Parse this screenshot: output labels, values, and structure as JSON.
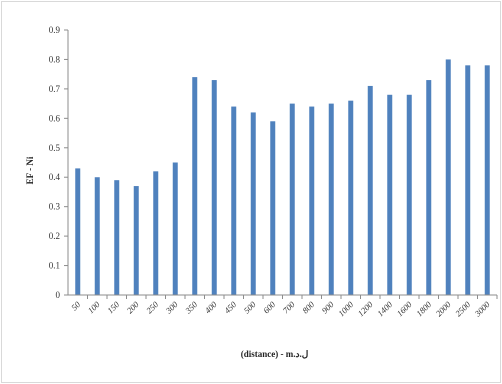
{
  "chart_data": {
    "type": "bar",
    "categories": [
      "50",
      "100",
      "150",
      "200",
      "250",
      "300",
      "350",
      "400",
      "450",
      "500",
      "600",
      "700",
      "800",
      "900",
      "1000",
      "1200",
      "1400",
      "1600",
      "1800",
      "2000",
      "2500",
      "3000"
    ],
    "series": [
      {
        "values": [
          0.43,
          0.4,
          0.39,
          0.37,
          0.42,
          0.45,
          0.74,
          0.73,
          0.64,
          0.62,
          0.59,
          0.65,
          0.64,
          0.65,
          0.66,
          0.71,
          0.68,
          0.68,
          0.73,
          0.8,
          0.78,
          0.78
        ]
      }
    ],
    "xlabel": "(distance) - m.ل.د",
    "ylabel": "EF - Ni",
    "ylim": [
      0,
      0.9
    ],
    "yticks": [
      "0",
      "0.1",
      "0.2",
      "0.3",
      "0.4",
      "0.5",
      "0.6",
      "0.7",
      "0.8",
      "0.9"
    ],
    "grid": false,
    "legend": "none",
    "bar_color": "#4f81bd"
  }
}
